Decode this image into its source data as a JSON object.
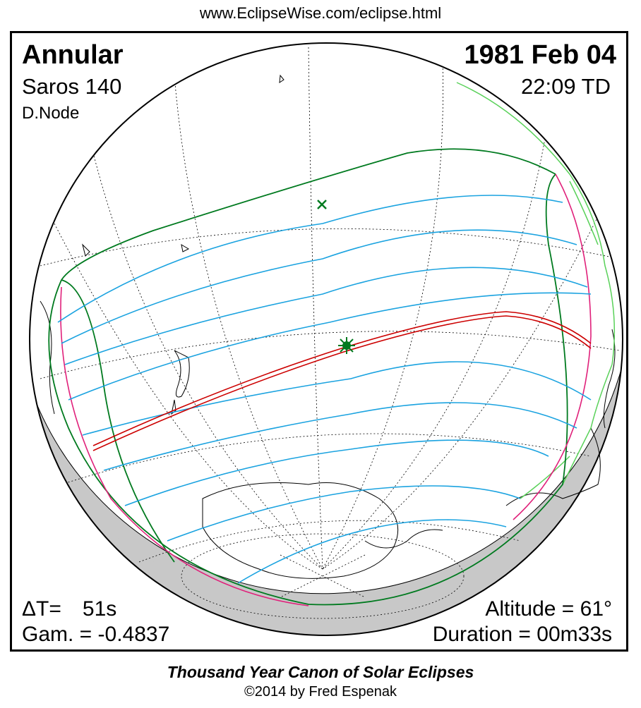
{
  "header": {
    "url": "www.EclipseWise.com/eclipse.html"
  },
  "eclipse": {
    "type": "Annular",
    "date": "1981 Feb 04",
    "saros": "Saros 140",
    "time": "22:09 TD",
    "node": "D.Node",
    "delta_t_label": "ΔT=",
    "delta_t_value": "51s",
    "gamma": "Gam. = -0.4837",
    "altitude": "Altitude = 61°",
    "duration": "Duration = 00m33s"
  },
  "footer": {
    "title": "Thousand Year Canon of Solar Eclipses",
    "copyright": "©2014 by Fred Espenak"
  },
  "colors": {
    "central_path": "#cc0000",
    "penumbral_limits": "#007a1f",
    "magnitude_curves": "#1ba3e0",
    "rise_set_curves": "#e0207a",
    "greatest_eclipse": "#007a1f",
    "night_shading": "#c8c8c8"
  }
}
